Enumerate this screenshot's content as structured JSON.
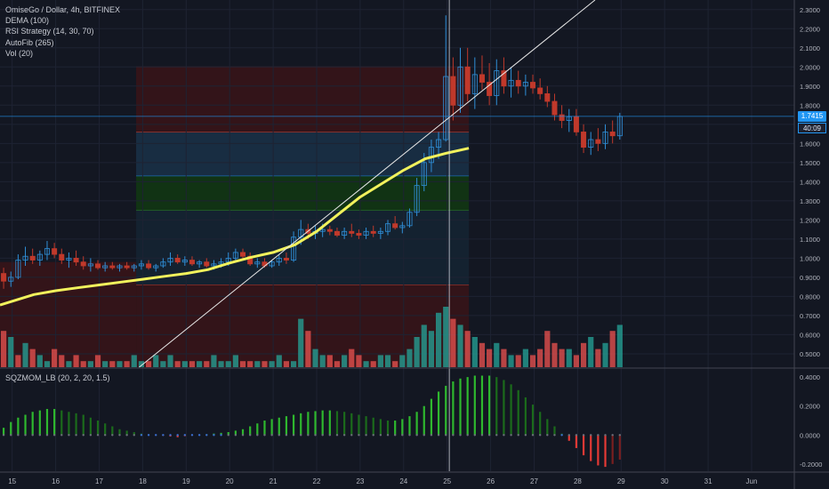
{
  "legend": {
    "title": "OmiseGo / Dollar, 4h, BITFINEX",
    "lines": [
      "DEMA (100)",
      "RSI Strategy (14, 30, 70)",
      "AutoFib (265)",
      "Vol (20)"
    ]
  },
  "indicator_legend": "SQZMOM_LB (20, 2, 20, 1.5)",
  "last_price": "1.7415",
  "countdown": "40:09",
  "colors": {
    "background": "#131722",
    "up": "#2f8fd8",
    "down": "#c0392b",
    "dema": "#f2f25c",
    "vol_up": "#26a69a",
    "vol_down": "#ef5350",
    "mom_up_strong": "#2eb82e",
    "mom_up_weak": "#1b6b1b",
    "mom_down_strong": "#e53935",
    "trendline": "#e8e8e8",
    "price_badge": "#2196f3"
  },
  "chart_data": [
    {
      "type": "candlestick",
      "title": "OmiseGo / Dollar, 4h, BITFINEX",
      "x_ticks": [
        "15",
        "16",
        "17",
        "18",
        "19",
        "20",
        "21",
        "22",
        "23",
        "24",
        "25",
        "26",
        "27",
        "28",
        "29",
        "30",
        "31",
        "Jun"
      ],
      "y_ticks": [
        "2.3000",
        "2.2000",
        "2.1000",
        "2.0000",
        "1.9000",
        "1.8000",
        "1.7000",
        "1.6000",
        "1.5000",
        "1.4000",
        "1.3000",
        "1.2000",
        "1.1000",
        "1.0000",
        "0.9000",
        "0.8000",
        "0.7000",
        "0.6000",
        "0.5000"
      ],
      "ylim": [
        0.43,
        2.35
      ],
      "x_day_start": 14.72,
      "bars_per_day": 6,
      "last_price": 1.7415,
      "candles": [
        [
          0.92,
          0.95,
          0.84,
          0.88
        ],
        [
          0.88,
          0.93,
          0.85,
          0.9
        ],
        [
          0.9,
          1.02,
          0.89,
          0.99
        ],
        [
          0.99,
          1.06,
          0.96,
          1.01
        ],
        [
          1.01,
          1.05,
          0.97,
          0.99
        ],
        [
          0.99,
          1.04,
          0.96,
          1.02
        ],
        [
          1.02,
          1.09,
          0.99,
          1.05
        ],
        [
          1.05,
          1.08,
          1.0,
          1.02
        ],
        [
          1.02,
          1.05,
          0.97,
          0.99
        ],
        [
          0.99,
          1.03,
          0.95,
          1.0
        ],
        [
          1.0,
          1.04,
          0.96,
          0.98
        ],
        [
          0.98,
          1.01,
          0.94,
          0.96
        ],
        [
          0.96,
          1.0,
          0.93,
          0.97
        ],
        [
          0.97,
          0.99,
          0.94,
          0.95
        ],
        [
          0.95,
          0.98,
          0.93,
          0.96
        ],
        [
          0.96,
          0.98,
          0.94,
          0.95
        ],
        [
          0.95,
          0.97,
          0.93,
          0.96
        ],
        [
          0.96,
          0.98,
          0.94,
          0.95
        ],
        [
          0.95,
          0.97,
          0.93,
          0.96
        ],
        [
          0.96,
          0.99,
          0.94,
          0.97
        ],
        [
          0.97,
          0.99,
          0.94,
          0.95
        ],
        [
          0.95,
          0.97,
          0.93,
          0.96
        ],
        [
          0.96,
          1.0,
          0.95,
          0.98
        ],
        [
          0.98,
          1.03,
          0.96,
          1.0
        ],
        [
          1.0,
          1.02,
          0.97,
          0.98
        ],
        [
          0.98,
          1.01,
          0.96,
          0.99
        ],
        [
          0.99,
          1.01,
          0.96,
          0.97
        ],
        [
          0.97,
          0.99,
          0.95,
          0.98
        ],
        [
          0.98,
          1.0,
          0.95,
          0.96
        ],
        [
          0.96,
          0.99,
          0.94,
          0.97
        ],
        [
          0.97,
          1.0,
          0.95,
          0.98
        ],
        [
          0.98,
          1.03,
          0.96,
          1.0
        ],
        [
          1.0,
          1.05,
          0.98,
          1.03
        ],
        [
          1.03,
          1.05,
          0.99,
          1.01
        ],
        [
          1.01,
          1.03,
          0.96,
          0.97
        ],
        [
          0.97,
          1.0,
          0.95,
          0.98
        ],
        [
          0.98,
          1.0,
          0.95,
          0.96
        ],
        [
          0.96,
          0.99,
          0.95,
          0.98
        ],
        [
          0.98,
          1.02,
          0.96,
          1.0
        ],
        [
          1.0,
          1.03,
          0.97,
          0.99
        ],
        [
          0.99,
          1.14,
          0.98,
          1.11
        ],
        [
          1.11,
          1.2,
          1.07,
          1.15
        ],
        [
          1.15,
          1.18,
          1.1,
          1.13
        ],
        [
          1.13,
          1.17,
          1.1,
          1.14
        ],
        [
          1.14,
          1.18,
          1.11,
          1.15
        ],
        [
          1.15,
          1.17,
          1.12,
          1.14
        ],
        [
          1.14,
          1.16,
          1.11,
          1.12
        ],
        [
          1.12,
          1.16,
          1.1,
          1.14
        ],
        [
          1.14,
          1.18,
          1.11,
          1.13
        ],
        [
          1.13,
          1.15,
          1.1,
          1.12
        ],
        [
          1.12,
          1.16,
          1.1,
          1.14
        ],
        [
          1.14,
          1.17,
          1.11,
          1.13
        ],
        [
          1.13,
          1.16,
          1.1,
          1.14
        ],
        [
          1.14,
          1.2,
          1.12,
          1.18
        ],
        [
          1.18,
          1.22,
          1.15,
          1.16
        ],
        [
          1.16,
          1.19,
          1.13,
          1.17
        ],
        [
          1.17,
          1.26,
          1.16,
          1.24
        ],
        [
          1.24,
          1.42,
          1.22,
          1.38
        ],
        [
          1.38,
          1.55,
          1.35,
          1.5
        ],
        [
          1.5,
          1.62,
          1.45,
          1.58
        ],
        [
          1.58,
          1.66,
          1.52,
          1.62
        ],
        [
          1.62,
          2.27,
          1.61,
          1.95
        ],
        [
          1.95,
          2.05,
          1.72,
          1.8
        ],
        [
          1.8,
          2.1,
          1.76,
          2.0
        ],
        [
          2.0,
          2.1,
          1.82,
          1.86
        ],
        [
          1.86,
          2.05,
          1.78,
          1.96
        ],
        [
          1.96,
          2.06,
          1.88,
          1.92
        ],
        [
          1.92,
          2.02,
          1.8,
          1.85
        ],
        [
          1.85,
          2.04,
          1.8,
          1.98
        ],
        [
          1.98,
          2.05,
          1.86,
          1.9
        ],
        [
          1.9,
          2.0,
          1.84,
          1.93
        ],
        [
          1.93,
          1.98,
          1.86,
          1.9
        ],
        [
          1.9,
          1.96,
          1.85,
          1.92
        ],
        [
          1.92,
          1.96,
          1.86,
          1.89
        ],
        [
          1.89,
          1.94,
          1.83,
          1.86
        ],
        [
          1.86,
          1.9,
          1.79,
          1.82
        ],
        [
          1.82,
          1.86,
          1.72,
          1.75
        ],
        [
          1.75,
          1.8,
          1.68,
          1.72
        ],
        [
          1.72,
          1.78,
          1.66,
          1.74
        ],
        [
          1.74,
          1.78,
          1.64,
          1.66
        ],
        [
          1.66,
          1.7,
          1.55,
          1.58
        ],
        [
          1.58,
          1.66,
          1.54,
          1.62
        ],
        [
          1.62,
          1.68,
          1.56,
          1.6
        ],
        [
          1.6,
          1.7,
          1.57,
          1.66
        ],
        [
          1.66,
          1.72,
          1.6,
          1.64
        ],
        [
          1.64,
          1.76,
          1.62,
          1.7415
        ]
      ],
      "dema": [
        [
          14.72,
          0.755
        ],
        [
          15.5,
          0.81
        ],
        [
          16.0,
          0.83
        ],
        [
          16.5,
          0.845
        ],
        [
          17.0,
          0.86
        ],
        [
          17.5,
          0.875
        ],
        [
          18.0,
          0.89
        ],
        [
          18.5,
          0.905
        ],
        [
          19.0,
          0.92
        ],
        [
          19.5,
          0.94
        ],
        [
          20.0,
          0.975
        ],
        [
          20.5,
          1.005
        ],
        [
          21.0,
          1.03
        ],
        [
          21.5,
          1.07
        ],
        [
          22.0,
          1.14
        ],
        [
          22.5,
          1.23
        ],
        [
          23.0,
          1.32
        ],
        [
          23.5,
          1.39
        ],
        [
          24.0,
          1.46
        ],
        [
          24.5,
          1.52
        ],
        [
          25.0,
          1.55
        ],
        [
          25.5,
          1.575
        ]
      ],
      "trendline": [
        [
          17.92,
          0.43
        ],
        [
          28.4,
          2.35
        ]
      ],
      "cursor_x": 25.05,
      "fib_zones": [
        {
          "from": 17.85,
          "to": 25.5,
          "y0": 0.43,
          "y1": 0.86,
          "color": "#3a1418"
        },
        {
          "from": 17.85,
          "to": 25.5,
          "y0": 0.86,
          "y1": 1.25,
          "color": "#152433"
        },
        {
          "from": 17.85,
          "to": 25.5,
          "y0": 1.25,
          "y1": 1.43,
          "color": "#123812"
        },
        {
          "from": 17.85,
          "to": 25.5,
          "y0": 1.43,
          "y1": 1.66,
          "color": "#1a3148"
        },
        {
          "from": 17.85,
          "to": 25.5,
          "y0": 1.66,
          "y1": 2.0,
          "color": "#3a1418"
        },
        {
          "from": 14.72,
          "to": 17.85,
          "y0": 0.43,
          "y1": 0.98,
          "color": "#3a1418"
        }
      ]
    },
    {
      "type": "bar",
      "series_name": "Vol (20)",
      "values": [
        6,
        5,
        2,
        4,
        3,
        2,
        1,
        3,
        2,
        1,
        2,
        1,
        1,
        2,
        1,
        1,
        1,
        1,
        2,
        1,
        1,
        2,
        1,
        2,
        1,
        1,
        1,
        1,
        1,
        2,
        1,
        1,
        2,
        1,
        1,
        1,
        1,
        1,
        2,
        1,
        1,
        8,
        6,
        3,
        2,
        2,
        1,
        2,
        3,
        2,
        1,
        1,
        2,
        2,
        1,
        2,
        3,
        5,
        7,
        6,
        9,
        10,
        8,
        7,
        6,
        5,
        4,
        3,
        4,
        3,
        2,
        2,
        3,
        2,
        3,
        6,
        4,
        3,
        3,
        2,
        4,
        5,
        3,
        4,
        6,
        7
      ],
      "up_flags": [
        0,
        1,
        0,
        1,
        0,
        1,
        1,
        0,
        0,
        1,
        0,
        0,
        1,
        0,
        1,
        0,
        1,
        0,
        1,
        1,
        0,
        1,
        1,
        1,
        0,
        1,
        0,
        1,
        0,
        1,
        1,
        1,
        1,
        0,
        0,
        1,
        0,
        1,
        1,
        0,
        1,
        1,
        0,
        1,
        1,
        0,
        0,
        1,
        0,
        0,
        1,
        0,
        1,
        1,
        0,
        1,
        1,
        1,
        1,
        1,
        1,
        1,
        0,
        1,
        0,
        1,
        0,
        0,
        1,
        0,
        1,
        0,
        1,
        0,
        0,
        0,
        0,
        0,
        1,
        0,
        0,
        1,
        0,
        1,
        0,
        1
      ]
    },
    {
      "type": "bar",
      "title": "SQZMOM_LB (20, 2, 20, 1.5)",
      "y_ticks": [
        "0.4000",
        "0.2000",
        "0.0000",
        "-0.2000"
      ],
      "ylim": [
        -0.25,
        0.45
      ],
      "values": [
        0.05,
        0.09,
        0.12,
        0.14,
        0.16,
        0.17,
        0.18,
        0.18,
        0.17,
        0.16,
        0.15,
        0.14,
        0.12,
        0.1,
        0.08,
        0.06,
        0.04,
        0.03,
        0.02,
        0.01,
        0.005,
        0.0,
        -0.005,
        -0.01,
        -0.015,
        -0.01,
        -0.005,
        0.0,
        0.005,
        0.01,
        0.015,
        0.02,
        0.03,
        0.04,
        0.06,
        0.08,
        0.1,
        0.11,
        0.12,
        0.13,
        0.14,
        0.15,
        0.16,
        0.165,
        0.17,
        0.17,
        0.165,
        0.16,
        0.15,
        0.14,
        0.13,
        0.12,
        0.11,
        0.1,
        0.1,
        0.11,
        0.13,
        0.16,
        0.2,
        0.25,
        0.3,
        0.34,
        0.37,
        0.39,
        0.4,
        0.41,
        0.41,
        0.41,
        0.4,
        0.38,
        0.35,
        0.31,
        0.26,
        0.21,
        0.16,
        0.11,
        0.06,
        0.01,
        -0.04,
        -0.09,
        -0.14,
        -0.18,
        -0.21,
        -0.22,
        -0.2,
        -0.17
      ]
    }
  ]
}
